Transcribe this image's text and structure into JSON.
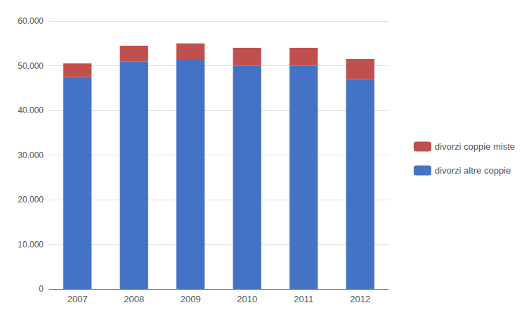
{
  "chart_data": {
    "type": "bar",
    "stacked": true,
    "categories": [
      "2007",
      "2008",
      "2009",
      "2010",
      "2011",
      "2012"
    ],
    "series": [
      {
        "name": "divorzi altre coppie",
        "color": "#4472C4",
        "values": [
          47500,
          51000,
          51500,
          50000,
          50000,
          47000
        ]
      },
      {
        "name": "divorzi coppie miste",
        "color": "#C0504D",
        "values": [
          3000,
          3500,
          3500,
          4000,
          4000,
          4500
        ]
      }
    ],
    "ylim": [
      0,
      60000
    ],
    "yticks": [
      0,
      {
        "value": 10000,
        "label": "10.000"
      },
      {
        "value": 20000,
        "label": "20.000"
      },
      {
        "value": 30000,
        "label": "30.000"
      },
      {
        "value": 40000,
        "label": "40.000"
      },
      {
        "value": 50000,
        "label": "50.000"
      },
      {
        "value": 60000,
        "label": "60.000"
      }
    ],
    "grid": true,
    "legend": "right"
  }
}
